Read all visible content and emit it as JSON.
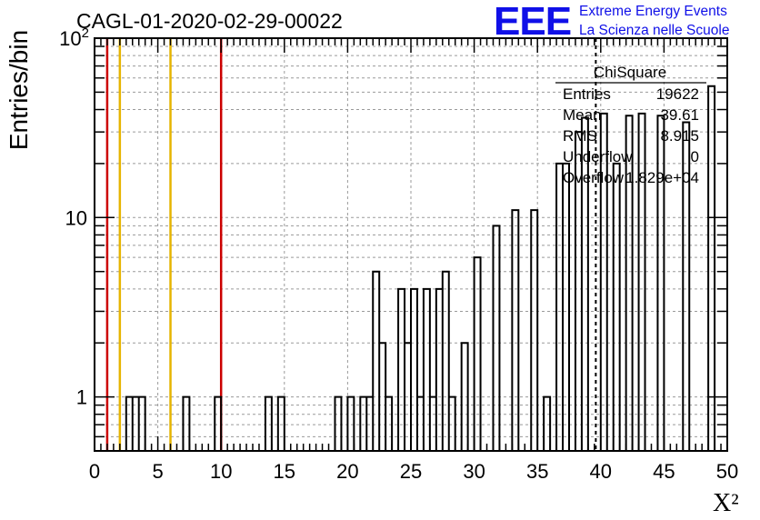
{
  "title": "CAGL-01-2020-02-29-00022",
  "logo": {
    "mark": "EEE",
    "line1": "Extreme Energy Events",
    "line2": "La Scienza nelle Scuole",
    "color": "#1010e8"
  },
  "stats_box": {
    "name": "ChiSquare",
    "rows": [
      {
        "label": "Entries",
        "value": "19622"
      },
      {
        "label": "Mean",
        "value": "39.61"
      },
      {
        "label": "RMS",
        "value": "8.915"
      },
      {
        "label": "Underflow",
        "value": "0"
      },
      {
        "label": "Overflow",
        "value": "1.829e+04"
      }
    ]
  },
  "chart_data": {
    "type": "histogram",
    "ylog": true,
    "grid": true,
    "xlabel": "X²",
    "ylabel": "Entries/bin",
    "xlim": [
      0,
      50
    ],
    "ylim": [
      0.5,
      100
    ],
    "bin_width": 0.5,
    "xticks": [
      "0",
      "5",
      "10",
      "15",
      "20",
      "25",
      "30",
      "35",
      "40",
      "45",
      "50"
    ],
    "yticks": [
      {
        "value": 1,
        "label": "1"
      },
      {
        "value": 10,
        "label": "10"
      },
      {
        "value": 100,
        "label": "10²"
      }
    ],
    "bins": [
      {
        "x0": 2.5,
        "v": 1
      },
      {
        "x0": 3.0,
        "v": 1
      },
      {
        "x0": 3.5,
        "v": 1
      },
      {
        "x0": 7.0,
        "v": 1
      },
      {
        "x0": 9.5,
        "v": 1
      },
      {
        "x0": 13.5,
        "v": 1
      },
      {
        "x0": 14.5,
        "v": 1
      },
      {
        "x0": 19.0,
        "v": 1
      },
      {
        "x0": 20.0,
        "v": 1
      },
      {
        "x0": 21.0,
        "v": 1
      },
      {
        "x0": 21.5,
        "v": 1
      },
      {
        "x0": 22.0,
        "v": 5
      },
      {
        "x0": 22.5,
        "v": 2
      },
      {
        "x0": 23.0,
        "v": 1
      },
      {
        "x0": 24.0,
        "v": 4
      },
      {
        "x0": 24.5,
        "v": 2
      },
      {
        "x0": 25.0,
        "v": 4
      },
      {
        "x0": 25.5,
        "v": 1
      },
      {
        "x0": 26.0,
        "v": 4
      },
      {
        "x0": 26.5,
        "v": 1
      },
      {
        "x0": 27.0,
        "v": 4
      },
      {
        "x0": 27.5,
        "v": 5
      },
      {
        "x0": 28.0,
        "v": 1
      },
      {
        "x0": 29.0,
        "v": 2
      },
      {
        "x0": 30.0,
        "v": 6
      },
      {
        "x0": 31.5,
        "v": 9
      },
      {
        "x0": 33.0,
        "v": 11
      },
      {
        "x0": 34.5,
        "v": 11
      },
      {
        "x0": 35.5,
        "v": 1
      },
      {
        "x0": 36.5,
        "v": 20
      },
      {
        "x0": 37.0,
        "v": 20
      },
      {
        "x0": 38.0,
        "v": 30
      },
      {
        "x0": 38.5,
        "v": 36
      },
      {
        "x0": 40.0,
        "v": 38
      },
      {
        "x0": 41.0,
        "v": 20
      },
      {
        "x0": 42.0,
        "v": 37
      },
      {
        "x0": 43.0,
        "v": 38
      },
      {
        "x0": 44.5,
        "v": 37
      },
      {
        "x0": 46.5,
        "v": 34
      },
      {
        "x0": 48.5,
        "v": 54
      }
    ],
    "reference_lines": [
      {
        "x": 1,
        "color": "#cc0000"
      },
      {
        "x": 2,
        "color": "#e6b400"
      },
      {
        "x": 6,
        "color": "#e6b400"
      },
      {
        "x": 10,
        "color": "#cc0000"
      }
    ],
    "mean_marker": {
      "x": 39.61,
      "style": "dashed"
    }
  }
}
